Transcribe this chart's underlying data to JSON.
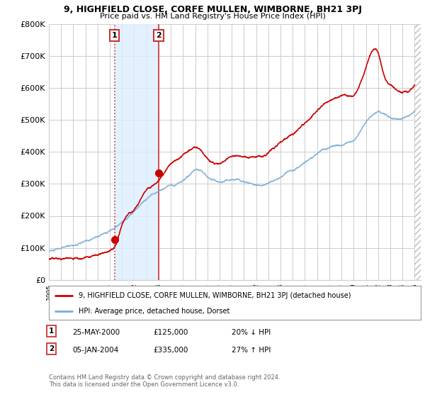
{
  "title_line1": "9, HIGHFIELD CLOSE, CORFE MULLEN, WIMBORNE, BH21 3PJ",
  "title_line2": "Price paid vs. HM Land Registry's House Price Index (HPI)",
  "background_color": "#ffffff",
  "plot_bg_color": "#ffffff",
  "grid_color": "#cccccc",
  "ylim": [
    0,
    800000
  ],
  "yticks": [
    0,
    100000,
    200000,
    300000,
    400000,
    500000,
    600000,
    700000,
    800000
  ],
  "ytick_labels": [
    "£0",
    "£100K",
    "£200K",
    "£300K",
    "£400K",
    "£500K",
    "£600K",
    "£700K",
    "£800K"
  ],
  "sale1": {
    "price": 125000,
    "hpi_pct": "20% ↓ HPI",
    "date_str": "25-MAY-2000"
  },
  "sale2": {
    "price": 335000,
    "hpi_pct": "27% ↑ HPI",
    "date_str": "05-JAN-2004"
  },
  "sale1_x": 2000.38,
  "sale2_x": 2004.01,
  "xmin": 1995.0,
  "xmax": 2025.5,
  "legend_label1": "9, HIGHFIELD CLOSE, CORFE MULLEN, WIMBORNE, BH21 3PJ (detached house)",
  "legend_label2": "HPI: Average price, detached house, Dorset",
  "footer1": "Contains HM Land Registry data © Crown copyright and database right 2024.",
  "footer2": "This data is licensed under the Open Government Licence v3.0.",
  "price_line_color": "#cc0000",
  "hpi_line_color": "#7aadd4",
  "shade_color": "#ddeeff",
  "marker_color": "#cc0000",
  "vline_color": "#cc3333",
  "box_color": "#cc3333",
  "hatch_color": "#cccccc"
}
